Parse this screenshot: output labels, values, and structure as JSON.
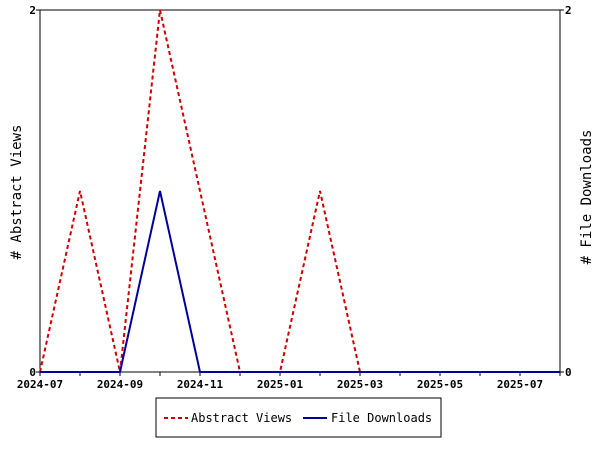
{
  "chart_data": {
    "type": "line",
    "x": [
      "2024-07",
      "2024-08",
      "2024-09",
      "2024-10",
      "2024-11",
      "2024-12",
      "2025-01",
      "2025-02",
      "2025-03",
      "2025-04",
      "2025-05",
      "2025-06",
      "2025-07",
      "2025-08"
    ],
    "x_tick_labels": [
      "2024-07",
      "2024-09",
      "2024-11",
      "2025-01",
      "2025-03",
      "2025-05",
      "2025-07"
    ],
    "series": [
      {
        "name": "Abstract Views",
        "values": [
          0,
          1,
          0,
          2,
          1,
          0,
          0,
          1,
          0,
          0,
          0,
          0,
          0,
          0
        ],
        "color": "#cc0000",
        "style": "dashed",
        "axis": "left"
      },
      {
        "name": "File Downloads",
        "values": [
          0,
          0,
          0,
          1,
          0,
          0,
          0,
          0,
          0,
          0,
          0,
          0,
          0,
          0
        ],
        "color": "#000099",
        "style": "solid",
        "axis": "right"
      }
    ],
    "ylabel_left": "# Abstract Views",
    "ylabel_right": "# File Downloads",
    "ylim_left": [
      0,
      2
    ],
    "ylim_right": [
      0,
      2
    ],
    "y_left_ticks": [
      "0",
      "2"
    ],
    "y_right_ticks": [
      "0",
      "2"
    ],
    "grid": false,
    "legend_position": "bottom"
  }
}
